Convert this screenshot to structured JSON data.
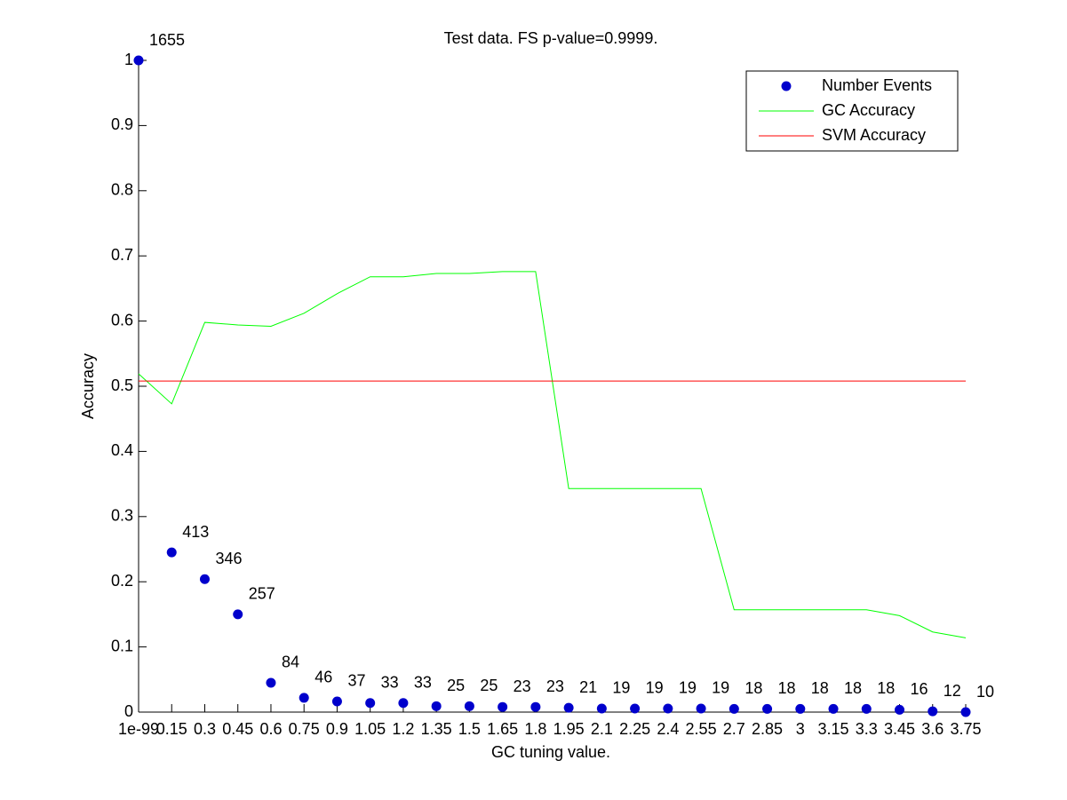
{
  "chart_data": {
    "type": "line",
    "title": "Test data. FS p-value=0.9999.",
    "x_label": "GC tuning value.",
    "y_label": "Accuracy",
    "categories": [
      "1e-99",
      "0.15",
      "0.3",
      "0.45",
      "0.6",
      "0.75",
      "0.9",
      "1.05",
      "1.2",
      "1.35",
      "1.5",
      "1.65",
      "1.8",
      "1.95",
      "2.1",
      "2.25",
      "2.4",
      "2.55",
      "2.7",
      "2.85",
      "3",
      "3.15",
      "3.3",
      "3.45",
      "3.6",
      "3.75"
    ],
    "ylim": [
      0,
      1
    ],
    "yticks": [
      0,
      0.1,
      0.2,
      0.3,
      0.4,
      0.5,
      0.6,
      0.7,
      0.8,
      0.9,
      1
    ],
    "legend": "upper right",
    "series": [
      {
        "name": "Number Events",
        "color": "#0000cc",
        "mode": "markers",
        "values": [
          1,
          0.245,
          0.204,
          0.15,
          0.045,
          0.0219,
          0.0164,
          0.014,
          0.014,
          0.0091,
          0.0091,
          0.0079,
          0.0079,
          0.0067,
          0.0055,
          0.0055,
          0.0055,
          0.0055,
          0.0049,
          0.0049,
          0.0049,
          0.0049,
          0.0049,
          0.0036,
          0.0012,
          0
        ],
        "event_counts": [
          1655,
          413,
          346,
          257,
          84,
          46,
          37,
          33,
          33,
          25,
          25,
          23,
          23,
          21,
          19,
          19,
          19,
          19,
          18,
          18,
          18,
          18,
          18,
          16,
          12,
          10
        ]
      },
      {
        "name": "GC Accuracy",
        "color": "#00ff00",
        "mode": "lines",
        "values": [
          0.519,
          0.473,
          0.598,
          0.594,
          0.592,
          0.612,
          0.642,
          0.668,
          0.668,
          0.673,
          0.673,
          0.676,
          0.676,
          0.343,
          0.343,
          0.343,
          0.343,
          0.343,
          0.157,
          0.157,
          0.157,
          0.157,
          0.157,
          0.148,
          0.123,
          0.114
        ]
      },
      {
        "name": "SVM Accuracy",
        "color": "#ff0000",
        "mode": "lines",
        "values": [
          0.508,
          0.508,
          0.508,
          0.508,
          0.508,
          0.508,
          0.508,
          0.508,
          0.508,
          0.508,
          0.508,
          0.508,
          0.508,
          0.508,
          0.508,
          0.508,
          0.508,
          0.508,
          0.508,
          0.508,
          0.508,
          0.508,
          0.508,
          0.508,
          0.508,
          0.508
        ]
      }
    ]
  }
}
